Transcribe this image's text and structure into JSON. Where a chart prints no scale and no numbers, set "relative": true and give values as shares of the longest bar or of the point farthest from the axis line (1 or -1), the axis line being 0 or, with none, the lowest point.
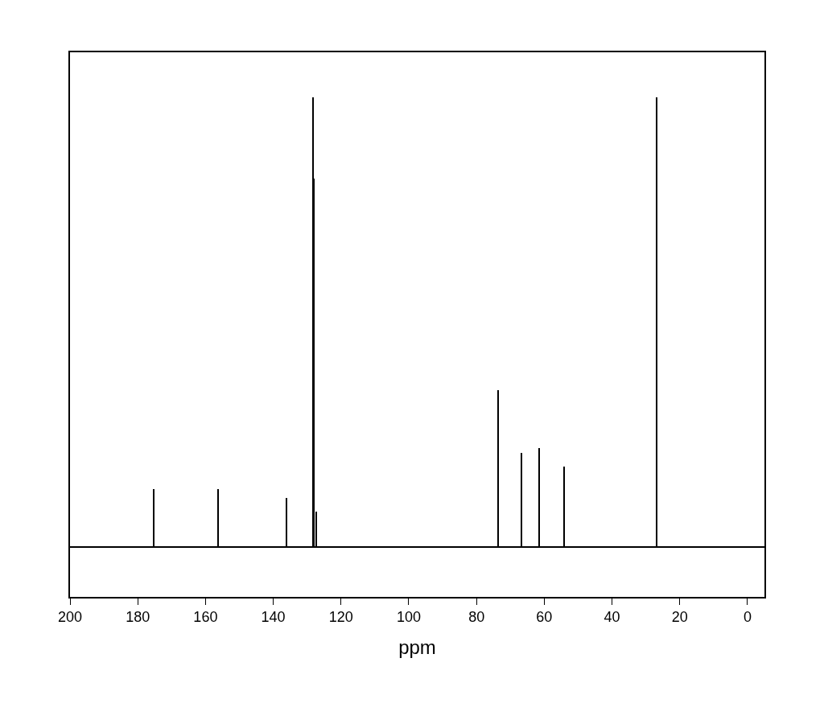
{
  "chart_data": {
    "type": "bar",
    "relative": true,
    "xlabel": "ppm",
    "x": [
      175.3,
      156.3,
      136.1,
      128.3,
      128.0,
      127.4,
      73.6,
      66.7,
      61.5,
      54.2,
      26.8
    ],
    "values": [
      0.13,
      0.13,
      0.11,
      1,
      0.82,
      0.08,
      0.35,
      0.21,
      0.22,
      0.18,
      1
    ],
    "color": "#000000",
    "xlim": [
      200,
      -5
    ],
    "xticks": [
      200,
      180,
      160,
      140,
      120,
      100,
      80,
      60,
      40,
      20,
      0
    ],
    "grid": false,
    "legend": false
  }
}
